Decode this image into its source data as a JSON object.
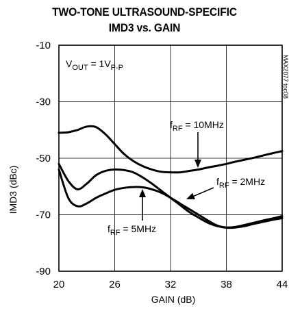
{
  "chart_data": {
    "type": "line",
    "title_line1": "TWO-TONE ULTRASOUND-SPECIFIC",
    "title_line2": "IMD3 vs. GAIN",
    "xlabel": "GAIN (dB)",
    "ylabel": "IMD3 (dBc)",
    "xlim": [
      20,
      44
    ],
    "ylim": [
      -90,
      -10
    ],
    "xticks": [
      "20",
      "26",
      "32",
      "38",
      "44"
    ],
    "yticks": [
      "-10",
      "-30",
      "-50",
      "-70",
      "-90"
    ],
    "grid": true,
    "condition": {
      "main": "V",
      "sub": "OUT",
      "eq": " = 1V",
      "sub2": "P-P"
    },
    "figure_code": "MAX2077 toc08",
    "series": [
      {
        "name": "fRF = 10MHz",
        "x": [
          20,
          21,
          22,
          23,
          24,
          25,
          26,
          27,
          28,
          29,
          30,
          31,
          32,
          33,
          34,
          35,
          36,
          37,
          38,
          39,
          40,
          41,
          42,
          43,
          44
        ],
        "y": [
          -41,
          -40.8,
          -40,
          -38.8,
          -39,
          -41.5,
          -45,
          -48.5,
          -51,
          -52.8,
          -54,
          -54.8,
          -55,
          -55,
          -54.5,
          -54,
          -53.3,
          -52.7,
          -52,
          -51.2,
          -50.5,
          -49.8,
          -49,
          -48.2,
          -47.5
        ]
      },
      {
        "name": "fRF = 2MHz",
        "x": [
          20,
          21,
          22,
          23,
          24,
          25,
          26,
          27,
          28,
          29,
          30,
          31,
          32,
          33,
          34,
          35,
          36,
          37,
          38,
          39,
          40,
          41,
          42,
          43,
          44
        ],
        "y": [
          -52,
          -58,
          -61,
          -59,
          -56,
          -54.5,
          -54,
          -54.2,
          -55,
          -56.8,
          -59,
          -61.5,
          -64,
          -66.5,
          -69,
          -71,
          -72.8,
          -74,
          -74.5,
          -74.3,
          -73.6,
          -72.8,
          -72,
          -71.3,
          -70.5
        ]
      },
      {
        "name": "fRF = 5MHz",
        "x": [
          20,
          21,
          22,
          23,
          24,
          25,
          26,
          27,
          28,
          29,
          30,
          31,
          32,
          33,
          34,
          35,
          36,
          37,
          38,
          39,
          40,
          41,
          42,
          43,
          44
        ],
        "y": [
          -54,
          -64,
          -67,
          -66,
          -64,
          -62.5,
          -61.2,
          -60.5,
          -60.2,
          -60.3,
          -61,
          -62.2,
          -64,
          -66,
          -68,
          -70,
          -72,
          -73.8,
          -74.6,
          -74.5,
          -74,
          -73.2,
          -72.5,
          -71.8,
          -71.2
        ]
      }
    ],
    "annotations": [
      {
        "pre": "f",
        "sub": "RF",
        "post": " = 10MHz"
      },
      {
        "pre": "f",
        "sub": "RF",
        "post": " = 2MHz"
      },
      {
        "pre": "f",
        "sub": "RF",
        "post": " = 5MHz"
      }
    ]
  }
}
